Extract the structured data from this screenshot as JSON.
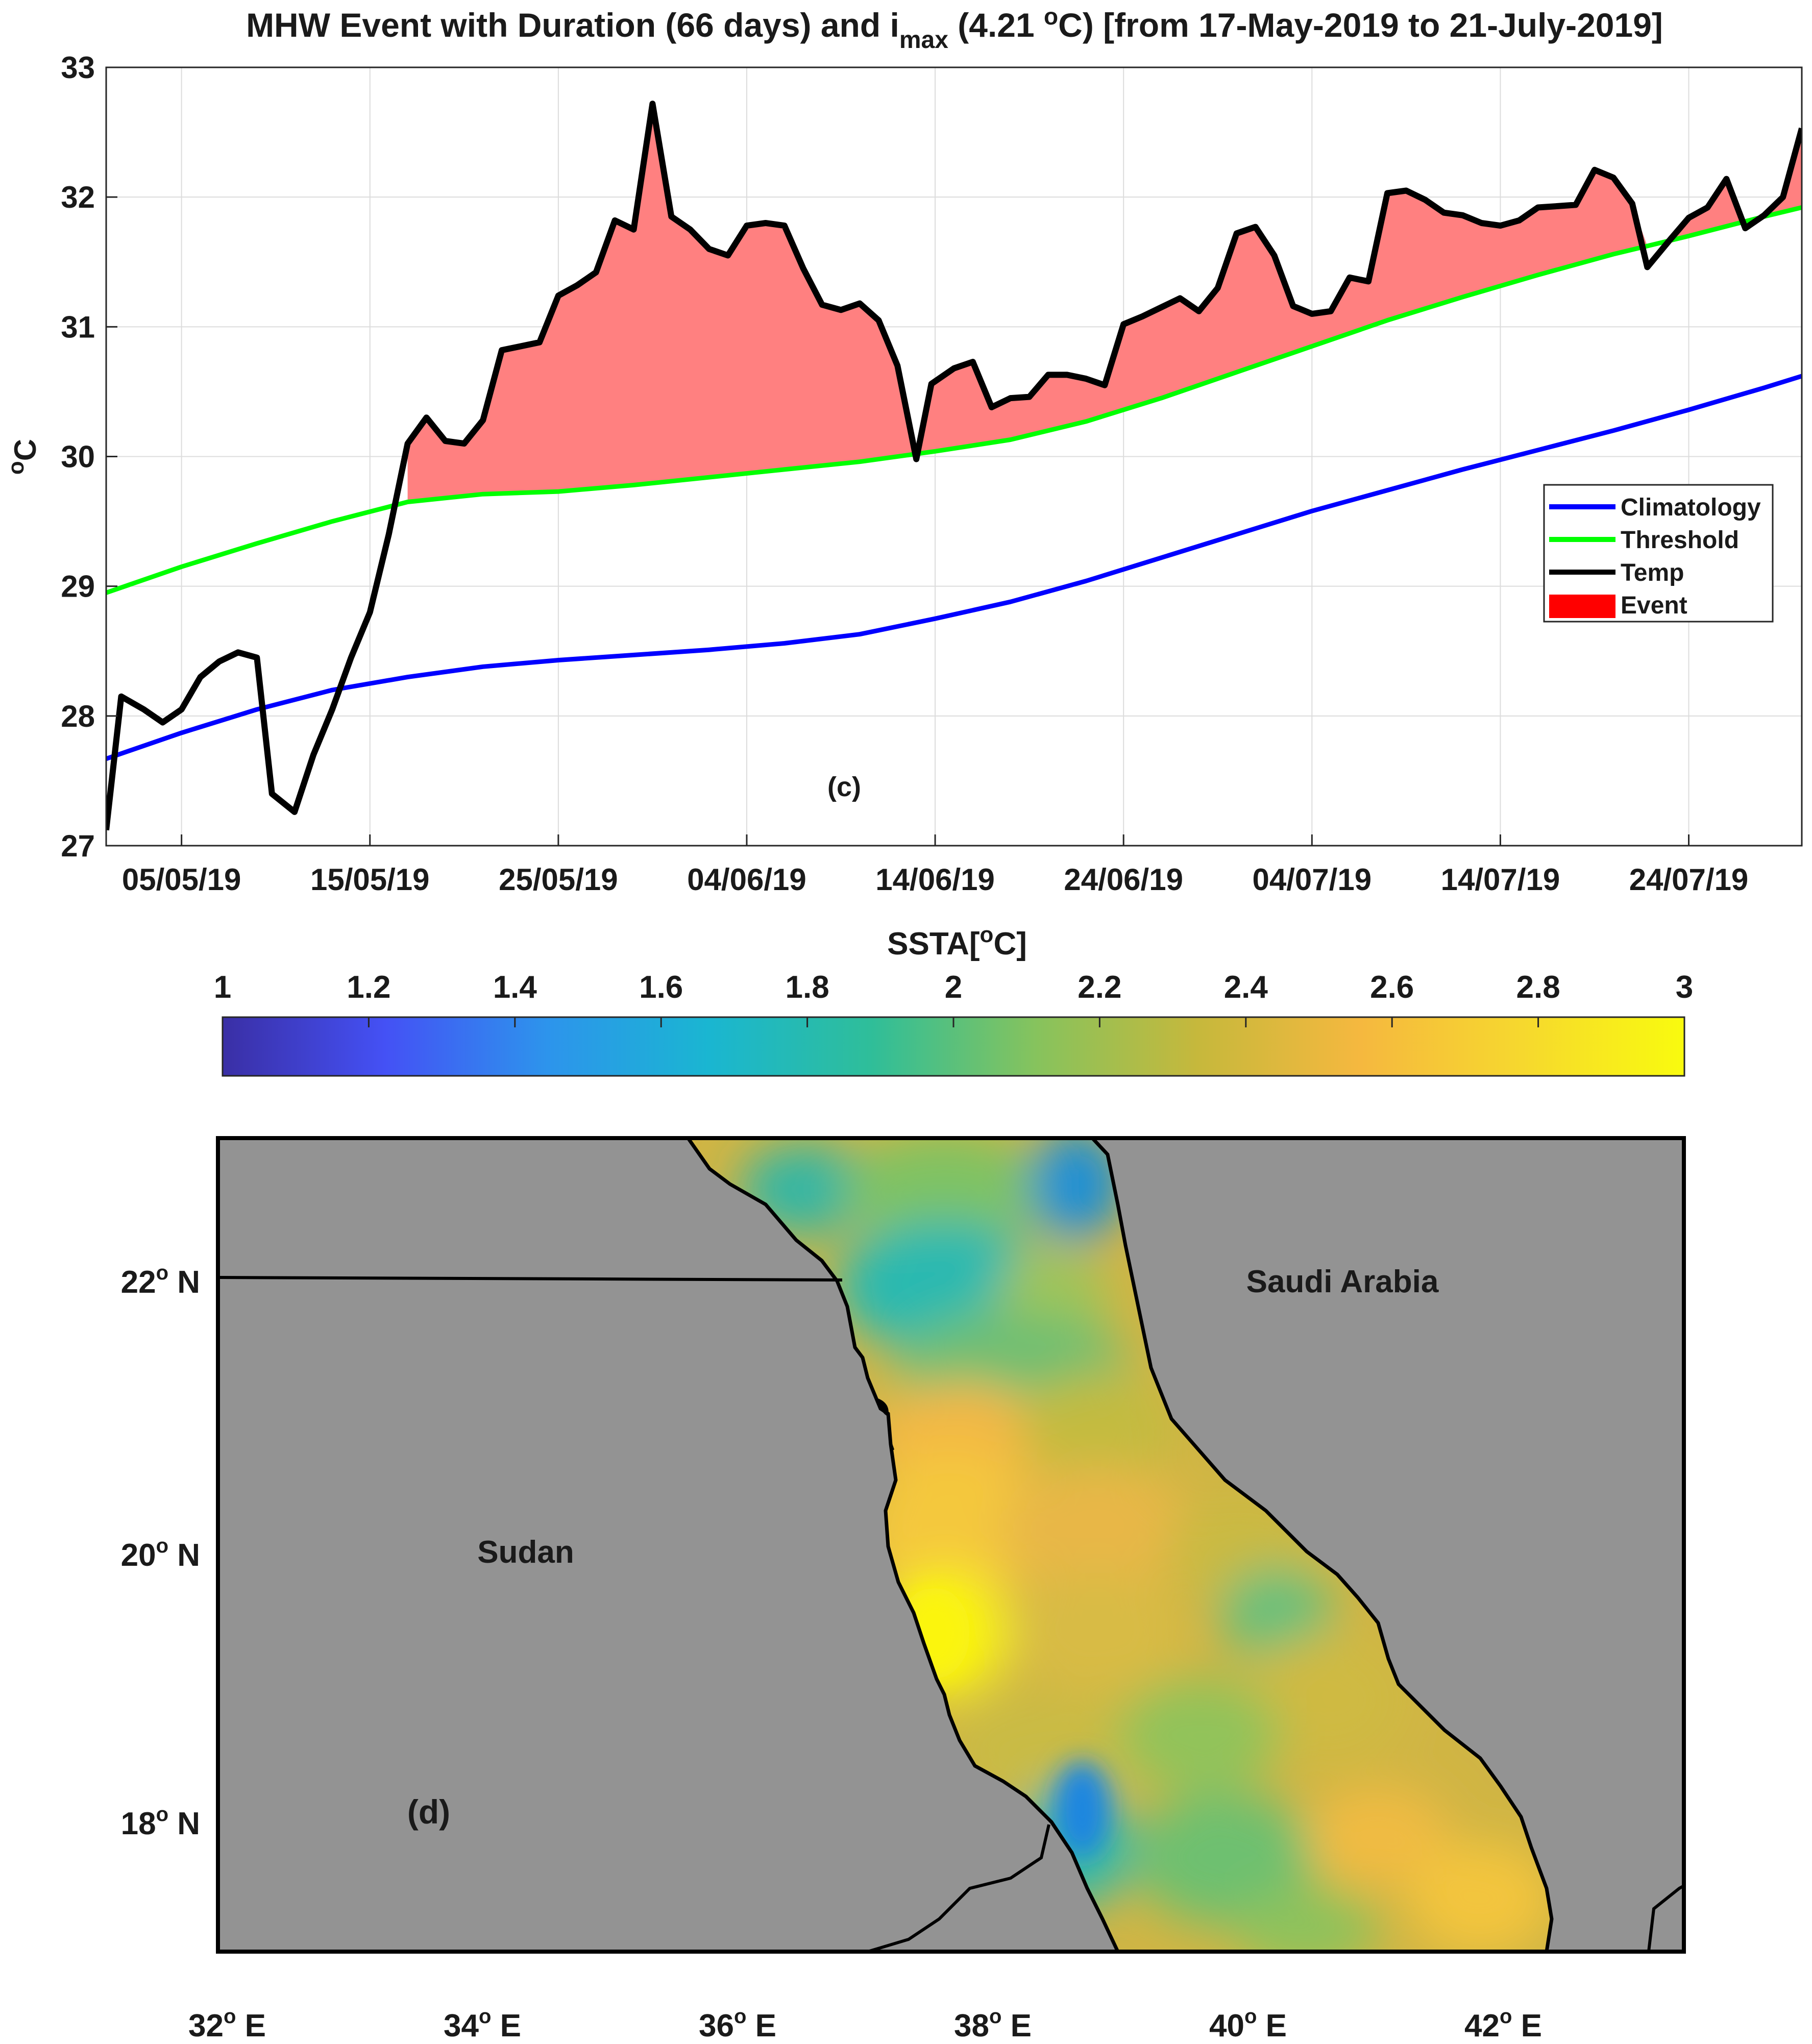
{
  "chart_data": [
    {
      "type": "line",
      "panel": "(c)",
      "title": {
        "prefix": "MHW Event with Duration (66 days) and i",
        "subscript": "max",
        "middle": " (4.21 ",
        "superscript": "o",
        "suffix": "C) [from 17-May-2019 to 21-July-2019]"
      },
      "ylabel": {
        "sup": "o",
        "text": "C"
      },
      "xlabel": "",
      "ylim": [
        27,
        33
      ],
      "yticks": [
        27,
        28,
        29,
        30,
        31,
        32,
        33
      ],
      "xlim": [
        0,
        90
      ],
      "x_unit": "days since 01/05/19",
      "xticks": [
        {
          "value": 4,
          "label": "05/05/19"
        },
        {
          "value": 14,
          "label": "15/05/19"
        },
        {
          "value": 24,
          "label": "25/05/19"
        },
        {
          "value": 34,
          "label": "04/06/19"
        },
        {
          "value": 44,
          "label": "14/06/19"
        },
        {
          "value": 54,
          "label": "24/06/19"
        },
        {
          "value": 64,
          "label": "04/07/19"
        },
        {
          "value": 74,
          "label": "14/07/19"
        },
        {
          "value": 84,
          "label": "24/07/19"
        }
      ],
      "grid": true,
      "legend_position": "middle-right",
      "legend": [
        {
          "name": "Climatology",
          "color": "#0000ff"
        },
        {
          "name": "Threshold",
          "color": "#00ff00"
        },
        {
          "name": "Temp",
          "color": "#000000"
        },
        {
          "name": "Event",
          "color": "#ff0000"
        }
      ],
      "event_fill_color": "#ff8080",
      "event_start_x": 16,
      "series": [
        {
          "name": "Climatology",
          "color": "#0000ff",
          "x": [
            0,
            4,
            8,
            12,
            16,
            20,
            24,
            28,
            32,
            36,
            40,
            44,
            48,
            52,
            56,
            60,
            64,
            68,
            72,
            76,
            80,
            84,
            88,
            90
          ],
          "y": [
            27.67,
            27.87,
            28.05,
            28.2,
            28.3,
            28.38,
            28.43,
            28.47,
            28.51,
            28.56,
            28.63,
            28.75,
            28.88,
            29.04,
            29.22,
            29.4,
            29.58,
            29.74,
            29.9,
            30.05,
            30.2,
            30.36,
            30.53,
            30.62
          ]
        },
        {
          "name": "Threshold",
          "color": "#00ff00",
          "x": [
            0,
            4,
            8,
            12,
            16,
            20,
            24,
            28,
            32,
            36,
            40,
            44,
            48,
            52,
            56,
            60,
            64,
            68,
            72,
            76,
            80,
            84,
            88,
            90
          ],
          "y": [
            28.95,
            29.15,
            29.33,
            29.5,
            29.65,
            29.71,
            29.73,
            29.78,
            29.84,
            29.9,
            29.96,
            30.04,
            30.13,
            30.27,
            30.45,
            30.65,
            30.85,
            31.05,
            31.23,
            31.4,
            31.56,
            31.7,
            31.85,
            31.92
          ]
        },
        {
          "name": "Temp",
          "color": "#000000",
          "x": [
            0,
            0.8,
            2,
            3,
            4,
            5,
            6,
            7,
            8,
            8.8,
            10,
            11,
            12,
            13,
            14,
            15,
            16,
            17,
            18,
            19,
            20,
            21,
            22,
            23,
            24,
            25,
            26,
            27,
            28,
            29,
            30,
            31,
            32,
            33,
            34,
            35,
            36,
            37,
            38,
            39,
            40,
            41,
            42,
            43,
            43.8,
            45,
            46,
            47,
            48,
            49,
            50,
            51,
            52,
            53,
            54,
            55,
            56,
            57,
            58,
            59,
            60,
            61,
            62,
            63,
            64,
            65,
            66,
            67,
            68,
            69,
            70,
            71,
            72,
            73,
            74,
            75,
            76,
            77,
            78,
            79,
            80,
            81,
            81.8,
            83,
            84,
            85,
            86,
            87,
            88,
            89,
            90
          ],
          "y": [
            27.12,
            28.15,
            28.05,
            27.95,
            28.05,
            28.3,
            28.42,
            28.49,
            28.45,
            27.4,
            27.26,
            27.7,
            28.05,
            28.45,
            28.8,
            29.4,
            30.1,
            30.3,
            30.12,
            30.1,
            30.28,
            30.82,
            30.85,
            30.88,
            31.24,
            31.32,
            31.42,
            31.82,
            31.75,
            32.72,
            31.85,
            31.75,
            31.6,
            31.55,
            31.78,
            31.8,
            31.78,
            31.45,
            31.17,
            31.13,
            31.18,
            31.05,
            30.7,
            29.98,
            30.56,
            30.68,
            30.73,
            30.38,
            30.45,
            30.46,
            30.63,
            30.63,
            30.6,
            30.55,
            31.02,
            31.08,
            31.15,
            31.22,
            31.12,
            31.3,
            31.72,
            31.77,
            31.55,
            31.16,
            31.1,
            31.12,
            31.38,
            31.35,
            32.03,
            32.05,
            31.98,
            31.88,
            31.86,
            31.8,
            31.78,
            31.82,
            31.92,
            31.93,
            31.94,
            32.21,
            32.15,
            31.95,
            31.46,
            31.67,
            31.84,
            31.92,
            32.14,
            31.76,
            31.86,
            32.0,
            32.53
          ]
        }
      ]
    },
    {
      "type": "heatmap",
      "panel": "(d)",
      "colorbar": {
        "title": {
          "prefix": "SSTA[",
          "sup": "o",
          "suffix": "C]"
        },
        "range": [
          1,
          3
        ],
        "ticks": [
          "1",
          "1.2",
          "1.4",
          "1.6",
          "1.8",
          "2",
          "2.2",
          "2.4",
          "2.6",
          "2.8",
          "3"
        ],
        "colors": [
          "#3a2fa5",
          "#4451f5",
          "#2d94ec",
          "#1ab6d1",
          "#2fbe99",
          "#86c35d",
          "#c6b83c",
          "#f5b83f",
          "#f6d82e",
          "#f9fb0e"
        ]
      },
      "xaxis_ticks": [
        {
          "deg": "32",
          "sup": "o",
          "hem": " E"
        },
        {
          "deg": "34",
          "sup": "o",
          "hem": " E"
        },
        {
          "deg": "36",
          "sup": "o",
          "hem": " E"
        },
        {
          "deg": "38",
          "sup": "o",
          "hem": " E"
        },
        {
          "deg": "40",
          "sup": "o",
          "hem": " E"
        },
        {
          "deg": "42",
          "sup": "o",
          "hem": " E"
        }
      ],
      "yaxis_ticks": [
        {
          "deg": "22",
          "sup": "o",
          "hem": " N"
        },
        {
          "deg": "20",
          "sup": "o",
          "hem": " N"
        },
        {
          "deg": "18",
          "sup": "o",
          "hem": " N"
        }
      ],
      "regions": [
        "Saudi Arabia",
        "Sudan"
      ],
      "land_color": "#939393",
      "sea_mean_anomaly_description_levels": {
        "north": 2.0,
        "central": 2.6,
        "west_central_max": 3.0,
        "south": 2.5
      }
    }
  ]
}
